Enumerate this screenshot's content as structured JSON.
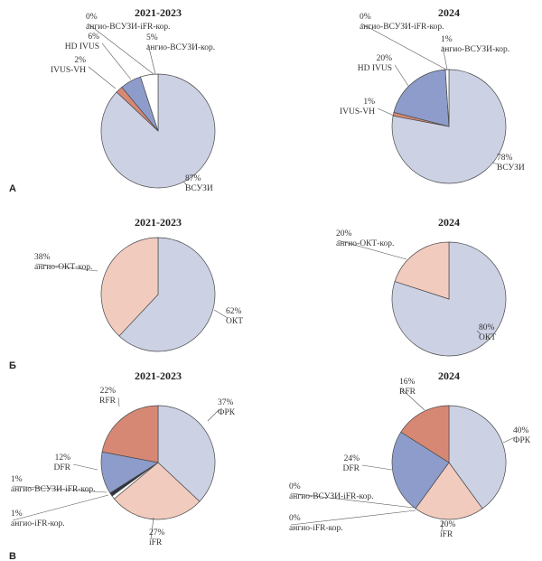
{
  "colors": {
    "light_blue": "#ccd1e4",
    "mid_blue": "#8d9cca",
    "salmon": "#d78874",
    "peach": "#f2cbbf",
    "dark": "#2f3340",
    "white": "#ffffff",
    "stroke": "#4a4a4a"
  },
  "chart_data": [
    {
      "panel": "А",
      "title": "2021-2023",
      "type": "pie",
      "slices": [
        {
          "pct": "87%",
          "name": "ВСУЗИ",
          "value": 87,
          "color": "light_blue"
        },
        {
          "pct": "2%",
          "name": "IVUS-VH",
          "value": 2,
          "color": "salmon"
        },
        {
          "pct": "6%",
          "name": "HD IVUS",
          "value": 6,
          "color": "mid_blue"
        },
        {
          "pct": "0%",
          "name": "ангио-ВСУЗИ-iFR-кор.",
          "value": 0,
          "color": "mid_blue"
        },
        {
          "pct": "5%",
          "name": "ангио-ВСУЗИ-кор.",
          "value": 5,
          "color": "white"
        }
      ]
    },
    {
      "panel": "А",
      "title": "2024",
      "type": "pie",
      "slices": [
        {
          "pct": "78%",
          "name": "ВСУЗИ",
          "value": 78,
          "color": "light_blue"
        },
        {
          "pct": "1%",
          "name": "IVUS-VH",
          "value": 1,
          "color": "salmon"
        },
        {
          "pct": "20%",
          "name": "HD IVUS",
          "value": 20,
          "color": "mid_blue"
        },
        {
          "pct": "0%",
          "name": "ангио-ВСУЗИ-iFR-кор.",
          "value": 0,
          "color": "mid_blue"
        },
        {
          "pct": "1%",
          "name": "ангио-ВСУЗИ-кор.",
          "value": 1,
          "color": "white"
        }
      ]
    },
    {
      "panel": "Б",
      "title": "2021-2023",
      "type": "pie",
      "slices": [
        {
          "pct": "62%",
          "name": "ОКТ",
          "value": 62,
          "color": "light_blue"
        },
        {
          "pct": "38%",
          "name": "ангио-ОКТ-кор.",
          "value": 38,
          "color": "peach"
        }
      ]
    },
    {
      "panel": "Б",
      "title": "2024",
      "type": "pie",
      "slices": [
        {
          "pct": "80%",
          "name": "ОКТ",
          "value": 80,
          "color": "light_blue"
        },
        {
          "pct": "20%",
          "name": "ангио-ОКТ-кор.",
          "value": 20,
          "color": "peach"
        }
      ]
    },
    {
      "panel": "В",
      "title": "2021-2023",
      "type": "pie",
      "slices": [
        {
          "pct": "37%",
          "name": "ФРК",
          "value": 37,
          "color": "light_blue"
        },
        {
          "pct": "27%",
          "name": "iFR",
          "value": 27,
          "color": "peach"
        },
        {
          "pct": "1%",
          "name": "ангио-iFR-кор.",
          "value": 1,
          "color": "white"
        },
        {
          "pct": "1%",
          "name": "ангио-ВСУЗИ-iFR-кор.",
          "value": 1,
          "color": "dark"
        },
        {
          "pct": "12%",
          "name": "DFR",
          "value": 12,
          "color": "mid_blue"
        },
        {
          "pct": "22%",
          "name": "RFR",
          "value": 22,
          "color": "salmon"
        }
      ]
    },
    {
      "panel": "В",
      "title": "2024",
      "type": "pie",
      "slices": [
        {
          "pct": "40%",
          "name": "ФРК",
          "value": 40,
          "color": "light_blue"
        },
        {
          "pct": "20%",
          "name": "iFR",
          "value": 20,
          "color": "peach"
        },
        {
          "pct": "0%",
          "name": "ангио-iFR-кор.",
          "value": 0,
          "color": "white"
        },
        {
          "pct": "0%",
          "name": "ангио-ВСУЗИ-iFR-кор.",
          "value": 0,
          "color": "dark"
        },
        {
          "pct": "24%",
          "name": "DFR",
          "value": 24,
          "color": "mid_blue"
        },
        {
          "pct": "16%",
          "name": "RFR",
          "value": 16,
          "color": "salmon"
        }
      ]
    }
  ]
}
